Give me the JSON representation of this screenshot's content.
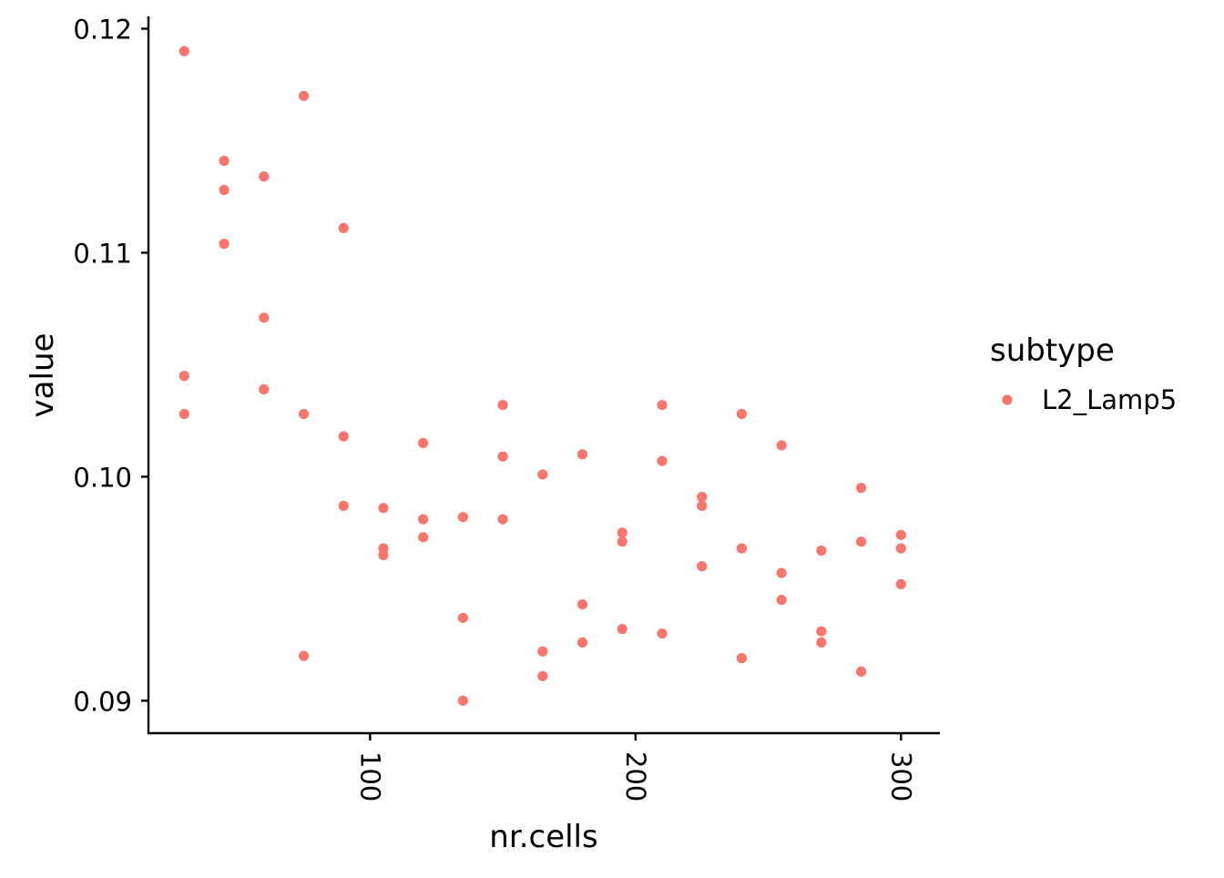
{
  "chart_data": {
    "type": "scatter",
    "title": "",
    "xlabel": "nr.cells",
    "ylabel": "value",
    "xlim": [
      16.5,
      314.3
    ],
    "ylim": [
      0.08855,
      0.12055
    ],
    "xticks": [
      100,
      200,
      300
    ],
    "yticks": [
      0.09,
      0.1,
      0.11,
      0.12
    ],
    "x_tick_labels": [
      "100",
      "200",
      "300"
    ],
    "y_tick_labels": [
      "0.09",
      "0.10",
      "0.11",
      "0.12"
    ],
    "x_tick_rotation_deg": 90,
    "grid": false,
    "legend": {
      "title": "subtype",
      "position": "right",
      "entries": [
        "L2_Lamp5"
      ]
    },
    "series": [
      {
        "name": "L2_Lamp5",
        "color": "#F8766D",
        "points": [
          [
            30,
            0.119
          ],
          [
            30,
            0.1045
          ],
          [
            30,
            0.1028
          ],
          [
            45,
            0.1141
          ],
          [
            45,
            0.1128
          ],
          [
            45,
            0.1104
          ],
          [
            60,
            0.1134
          ],
          [
            60,
            0.1071
          ],
          [
            60,
            0.1039
          ],
          [
            75,
            0.117
          ],
          [
            75,
            0.1028
          ],
          [
            75,
            0.092
          ],
          [
            90,
            0.1111
          ],
          [
            90,
            0.1018
          ],
          [
            90,
            0.0987
          ],
          [
            105,
            0.0986
          ],
          [
            105,
            0.0968
          ],
          [
            105,
            0.0965
          ],
          [
            120,
            0.1015
          ],
          [
            120,
            0.0981
          ],
          [
            120,
            0.0973
          ],
          [
            135,
            0.0982
          ],
          [
            135,
            0.0937
          ],
          [
            135,
            0.09
          ],
          [
            150,
            0.1032
          ],
          [
            150,
            0.1009
          ],
          [
            150,
            0.0981
          ],
          [
            165,
            0.1001
          ],
          [
            165,
            0.0922
          ],
          [
            165,
            0.0911
          ],
          [
            180,
            0.101
          ],
          [
            180,
            0.0943
          ],
          [
            180,
            0.0926
          ],
          [
            195,
            0.0975
          ],
          [
            195,
            0.0971
          ],
          [
            195,
            0.0932
          ],
          [
            210,
            0.1032
          ],
          [
            210,
            0.1007
          ],
          [
            210,
            0.093
          ],
          [
            225,
            0.0991
          ],
          [
            225,
            0.0987
          ],
          [
            225,
            0.096
          ],
          [
            240,
            0.1028
          ],
          [
            240,
            0.0968
          ],
          [
            240,
            0.0919
          ],
          [
            255,
            0.1014
          ],
          [
            255,
            0.0957
          ],
          [
            255,
            0.0945
          ],
          [
            270,
            0.0967
          ],
          [
            270,
            0.0931
          ],
          [
            270,
            0.0926
          ],
          [
            285,
            0.0995
          ],
          [
            285,
            0.0971
          ],
          [
            285,
            0.0913
          ],
          [
            300,
            0.0974
          ],
          [
            300,
            0.0968
          ],
          [
            300,
            0.0952
          ]
        ]
      }
    ]
  }
}
